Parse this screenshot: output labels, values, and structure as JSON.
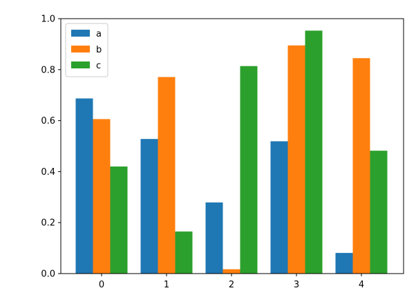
{
  "chart_data": {
    "type": "bar",
    "categories": [
      "0",
      "1",
      "2",
      "3",
      "4"
    ],
    "series": [
      {
        "name": "a",
        "color": "#1f77b4",
        "values": [
          0.687,
          0.528,
          0.279,
          0.519,
          0.081
        ]
      },
      {
        "name": "b",
        "color": "#ff7f0e",
        "values": [
          0.606,
          0.771,
          0.017,
          0.895,
          0.845
        ]
      },
      {
        "name": "c",
        "color": "#2ca02c",
        "values": [
          0.42,
          0.165,
          0.814,
          0.953,
          0.482
        ]
      }
    ],
    "ylim": [
      0,
      1.0
    ],
    "yticks": [
      "0.0",
      "0.2",
      "0.4",
      "0.6",
      "0.8",
      "1.0"
    ],
    "grid": false,
    "legend_position": "top-left"
  }
}
